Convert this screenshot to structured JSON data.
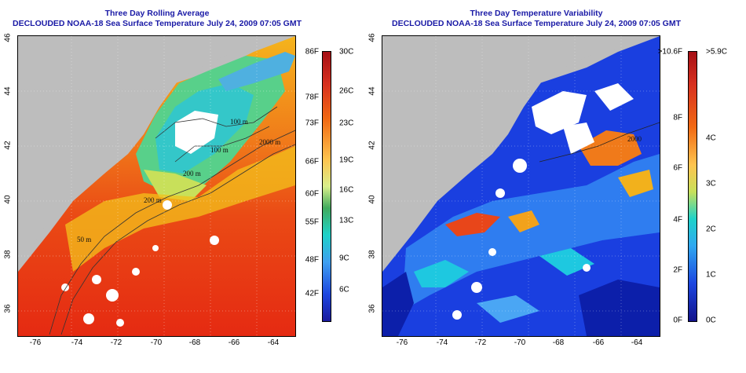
{
  "left_panel": {
    "title": "Three Day Rolling Average",
    "subtitle": "DECLOUDED NOAA-18 Sea Surface Temperature July 24, 2009 07:05 GMT",
    "x_ticks": [
      "-76",
      "-74",
      "-72",
      "-70",
      "-68",
      "-66",
      "-64"
    ],
    "y_ticks": [
      "46",
      "44",
      "42",
      "40",
      "38",
      "36"
    ],
    "colorbar_f": [
      "86F",
      "78F",
      "73F",
      "66F",
      "60F",
      "55F",
      "48F",
      "42F"
    ],
    "colorbar_c": [
      "30C",
      "26C",
      "23C",
      "19C",
      "16C",
      "13C",
      "9C",
      "6C"
    ],
    "contour_labels": [
      "100 m",
      "2000 m",
      "100 m",
      "200 m",
      "200 m",
      "50 m"
    ]
  },
  "right_panel": {
    "title": "Three Day Temperature Variability",
    "subtitle": "DECLOUDED NOAA-18 Sea Surface Temperature July 24, 2009 07:05 GMT",
    "x_ticks": [
      "-76",
      "-74",
      "-72",
      "-70",
      "-68",
      "-66",
      "-64"
    ],
    "y_ticks": [
      "46",
      "44",
      "42",
      "40",
      "38",
      "36"
    ],
    "colorbar_f": [
      ">10.6F",
      "8F",
      "6F",
      "4F",
      "2F",
      "0F"
    ],
    "colorbar_c": [
      ">5.9C",
      "4C",
      "3C",
      "2C",
      "1C",
      "0C"
    ],
    "contour_labels": [
      "2000"
    ]
  },
  "colors": {
    "title": "#1a1aa6",
    "land": "#bdbdbd",
    "warm": "#e63a14",
    "cold": "#0a1fd6"
  }
}
